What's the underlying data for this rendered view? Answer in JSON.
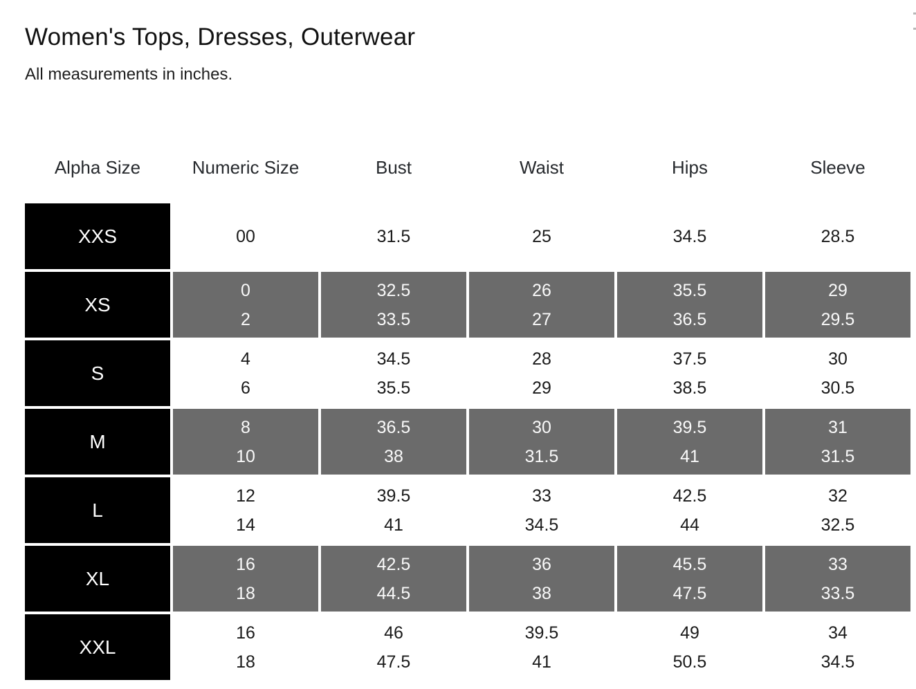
{
  "page": {
    "title": "Women's Tops, Dresses, Outerwear",
    "subtitle": "All measurements in inches."
  },
  "colors": {
    "alpha_cell_bg": "#000000",
    "alpha_cell_text": "#ffffff",
    "shaded_cell_bg": "#6b6b6b",
    "shaded_cell_text": "#fafafa",
    "plain_cell_text": "#1a1a1a",
    "header_text": "#26292d"
  },
  "table": {
    "columns": [
      "Alpha Size",
      "Numeric Size",
      "Bust",
      "Waist",
      "Hips",
      "Sleeve"
    ],
    "rows": [
      {
        "alpha": "XXS",
        "shaded": false,
        "cells": [
          [
            "00"
          ],
          [
            "31.5"
          ],
          [
            "25"
          ],
          [
            "34.5"
          ],
          [
            "28.5"
          ]
        ]
      },
      {
        "alpha": "XS",
        "shaded": true,
        "cells": [
          [
            "0",
            "2"
          ],
          [
            "32.5",
            "33.5"
          ],
          [
            "26",
            "27"
          ],
          [
            "35.5",
            "36.5"
          ],
          [
            "29",
            "29.5"
          ]
        ]
      },
      {
        "alpha": "S",
        "shaded": false,
        "cells": [
          [
            "4",
            "6"
          ],
          [
            "34.5",
            "35.5"
          ],
          [
            "28",
            "29"
          ],
          [
            "37.5",
            "38.5"
          ],
          [
            "30",
            "30.5"
          ]
        ]
      },
      {
        "alpha": "M",
        "shaded": true,
        "cells": [
          [
            "8",
            "10"
          ],
          [
            "36.5",
            "38"
          ],
          [
            "30",
            "31.5"
          ],
          [
            "39.5",
            "41"
          ],
          [
            "31",
            "31.5"
          ]
        ]
      },
      {
        "alpha": "L",
        "shaded": false,
        "cells": [
          [
            "12",
            "14"
          ],
          [
            "39.5",
            "41"
          ],
          [
            "33",
            "34.5"
          ],
          [
            "42.5",
            "44"
          ],
          [
            "32",
            "32.5"
          ]
        ]
      },
      {
        "alpha": "XL",
        "shaded": true,
        "cells": [
          [
            "16",
            "18"
          ],
          [
            "42.5",
            "44.5"
          ],
          [
            "36",
            "38"
          ],
          [
            "45.5",
            "47.5"
          ],
          [
            "33",
            "33.5"
          ]
        ]
      },
      {
        "alpha": "XXL",
        "shaded": false,
        "cells": [
          [
            "16",
            "18"
          ],
          [
            "46",
            "47.5"
          ],
          [
            "39.5",
            "41"
          ],
          [
            "49",
            "50.5"
          ],
          [
            "34",
            "34.5"
          ]
        ]
      }
    ]
  }
}
